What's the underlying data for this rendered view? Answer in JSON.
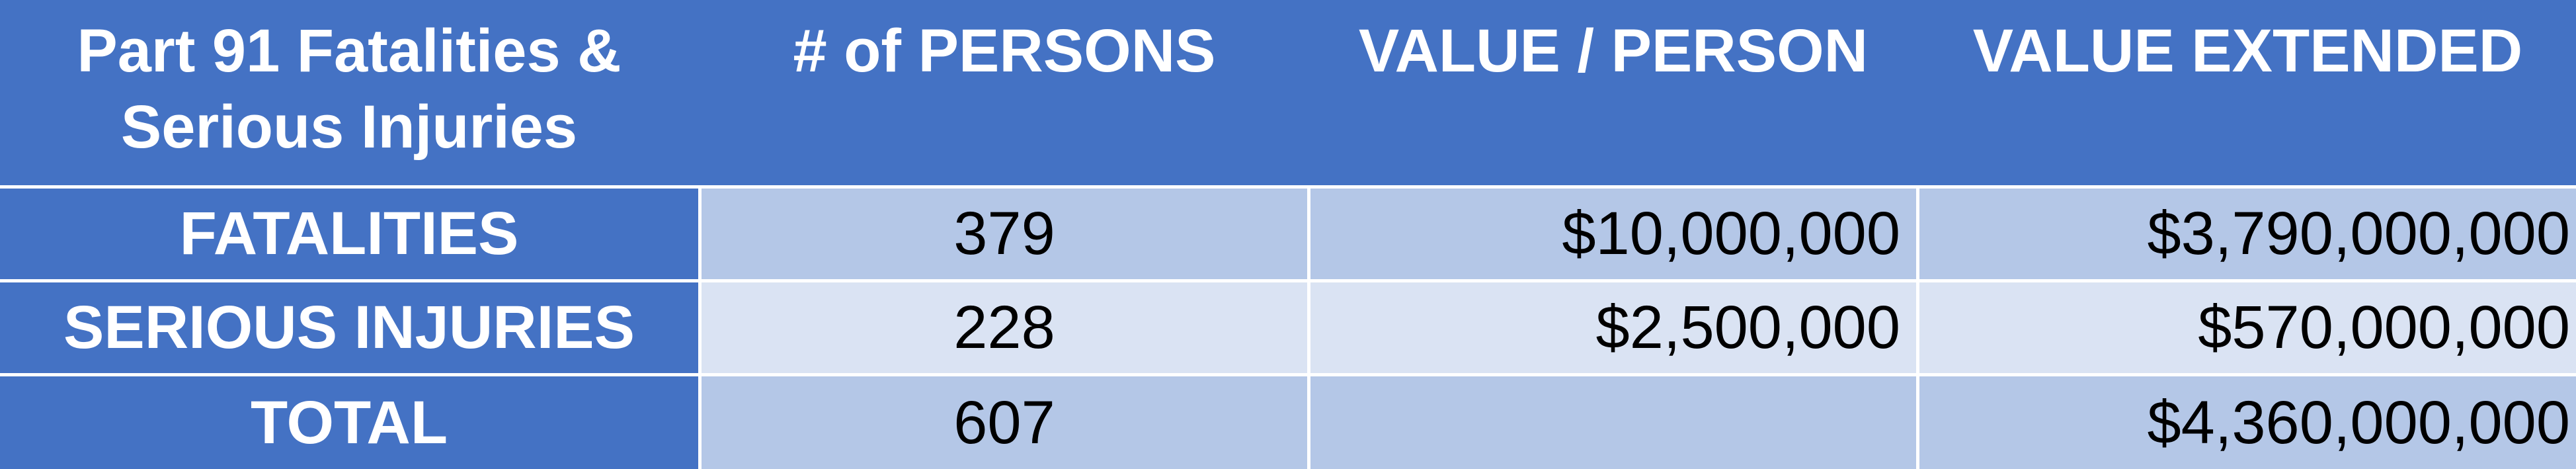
{
  "table": {
    "headers": [
      "Part 91 Fatalities & Serious Injuries",
      "# of PERSONS",
      "VALUE / PERSON",
      "VALUE EXTENDED"
    ],
    "header_lines": {
      "col1_line1": "Part 91 Fatalities &",
      "col1_line2": "Serious Injuries"
    },
    "rows": [
      {
        "label": "FATALITIES",
        "persons": "379",
        "value_per_person": "$10,000,000",
        "value_extended": "$3,790,000,000"
      },
      {
        "label": "SERIOUS INJURIES",
        "persons": "228",
        "value_per_person": "$2,500,000",
        "value_extended": "$570,000,000"
      },
      {
        "label": "TOTAL",
        "persons": "607",
        "value_per_person": "",
        "value_extended": "$4,360,000,000"
      }
    ],
    "colors": {
      "header_bg": "#4472c4",
      "row_dark_bg": "#b4c7e7",
      "row_light_bg": "#dae3f3",
      "header_text": "#ffffff"
    }
  }
}
